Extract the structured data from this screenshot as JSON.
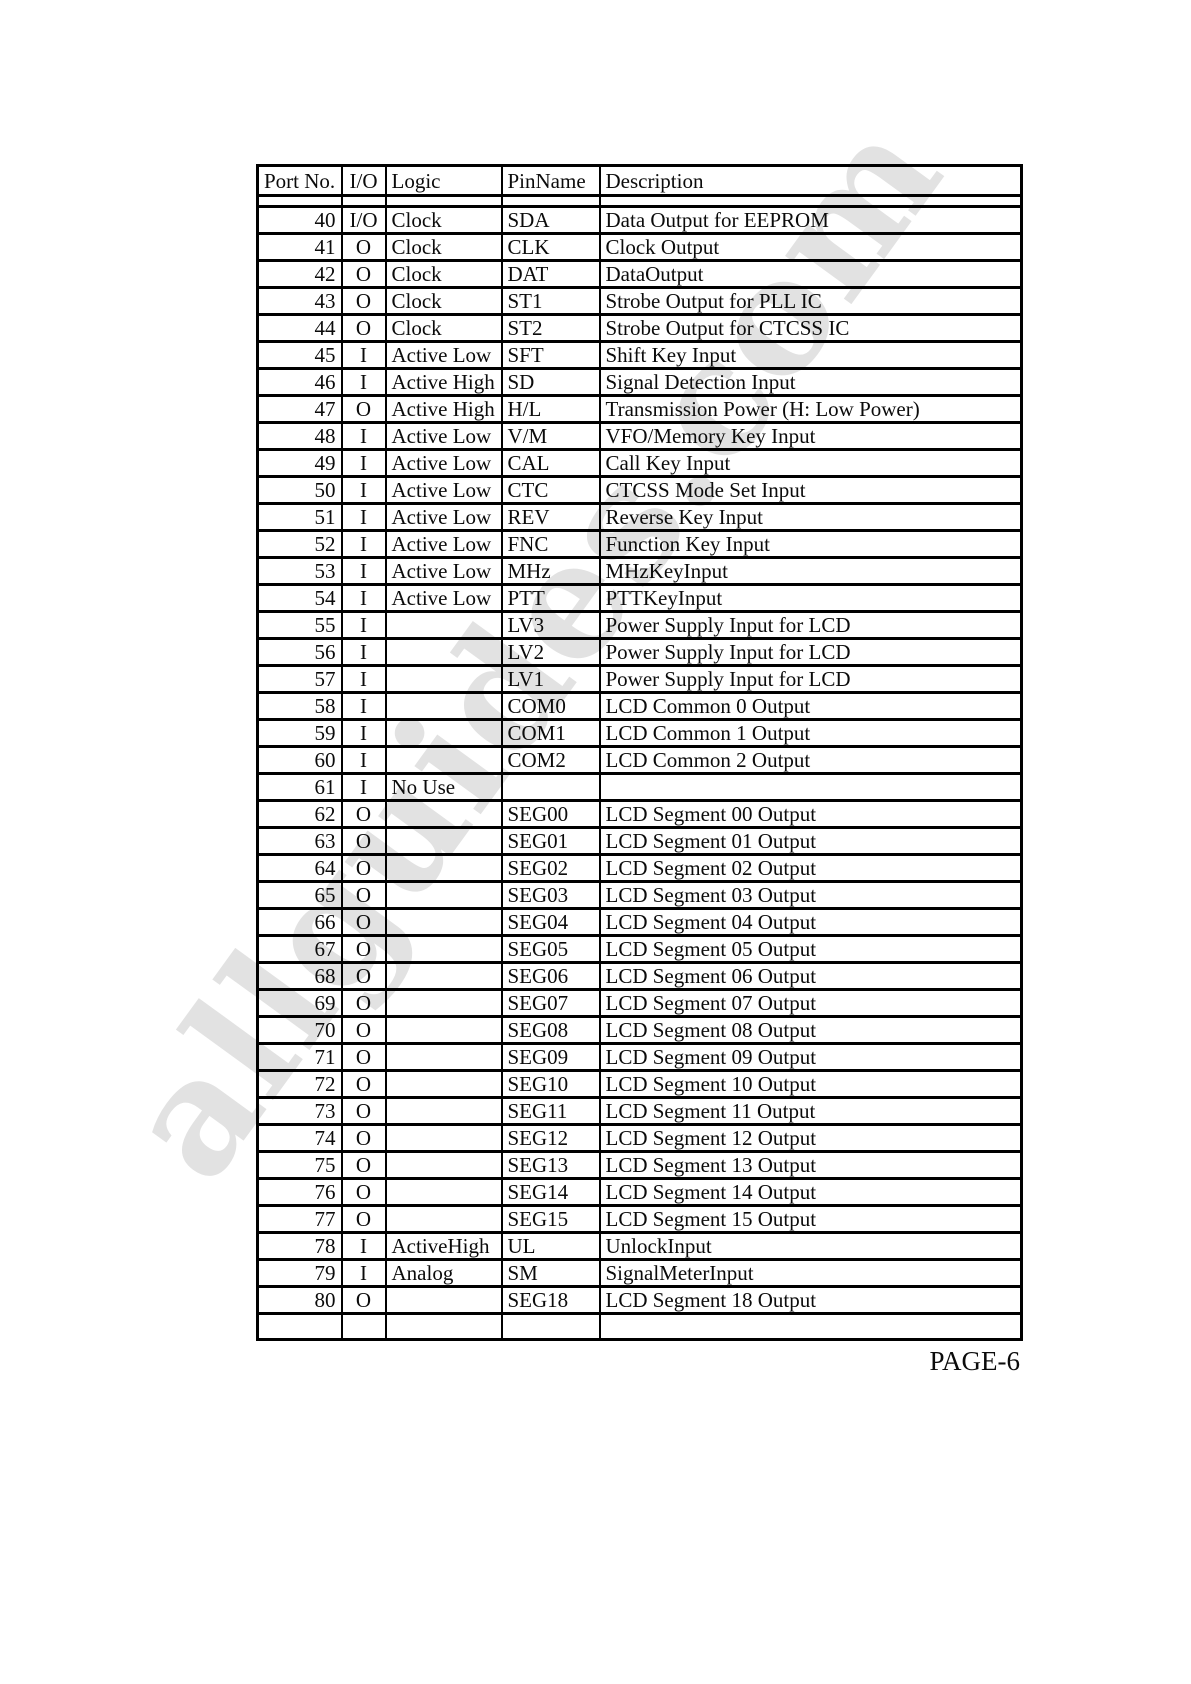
{
  "page": {
    "number_label": "PAGE-6"
  },
  "watermark": {
    "text": "allguides.com"
  },
  "colors": {
    "page_bg": "#ffffff",
    "border": "#000000",
    "watermark": "#e2e2e2"
  },
  "table": {
    "headers": [
      "Port No.",
      "I/O",
      "Logic",
      "PinName",
      "Description"
    ],
    "rows": [
      {
        "port": "40",
        "io": "I/O",
        "logic": "Clock",
        "pin": "SDA",
        "desc": "Data Output for EEPROM"
      },
      {
        "port": "41",
        "io": "O",
        "logic": "Clock",
        "pin": "CLK",
        "desc": "Clock Output"
      },
      {
        "port": "42",
        "io": "O",
        "logic": "Clock",
        "pin": "DAT",
        "desc": "DataOutput"
      },
      {
        "port": "43",
        "io": "O",
        "logic": "Clock",
        "pin": "ST1",
        "desc": "Strobe Output for PLL IC"
      },
      {
        "port": "44",
        "io": "O",
        "logic": "Clock",
        "pin": "ST2",
        "desc": "Strobe Output for CTCSS IC"
      },
      {
        "port": "45",
        "io": "I",
        "logic": "Active Low",
        "pin": "SFT",
        "desc": "Shift Key Input"
      },
      {
        "port": "46",
        "io": "I",
        "logic": "Active High",
        "pin": "SD",
        "desc": "Signal Detection Input"
      },
      {
        "port": "47",
        "io": "O",
        "logic": "Active High",
        "pin": "H/L",
        "desc": "Transmission Power (H: Low Power)"
      },
      {
        "port": "48",
        "io": "I",
        "logic": "Active Low",
        "pin": "V/M",
        "desc": "VFO/Memory Key Input"
      },
      {
        "port": "49",
        "io": "I",
        "logic": "Active Low",
        "pin": "CAL",
        "desc": "Call Key Input"
      },
      {
        "port": "50",
        "io": "I",
        "logic": "Active Low",
        "pin": "CTC",
        "desc": "CTCSS Mode Set Input"
      },
      {
        "port": "51",
        "io": "I",
        "logic": "Active Low",
        "pin": "REV",
        "desc": "Reverse Key Input"
      },
      {
        "port": "52",
        "io": "I",
        "logic": "Active Low",
        "pin": "FNC",
        "desc": "Function Key Input"
      },
      {
        "port": "53",
        "io": "I",
        "logic": "Active Low",
        "pin": "MHz",
        "desc": "MHzKeyInput"
      },
      {
        "port": "54",
        "io": "I",
        "logic": "Active Low",
        "pin": "PTT",
        "desc": "PTTKeyInput"
      },
      {
        "port": "55",
        "io": "I",
        "logic": "",
        "pin": "LV3",
        "desc": "Power Supply Input for LCD"
      },
      {
        "port": "56",
        "io": "I",
        "logic": "",
        "pin": "LV2",
        "desc": "Power Supply Input for LCD"
      },
      {
        "port": "57",
        "io": "I",
        "logic": "",
        "pin": "LV1",
        "desc": "Power Supply Input for LCD"
      },
      {
        "port": "58",
        "io": "I",
        "logic": "",
        "pin": "COM0",
        "desc": "LCD Common 0 Output"
      },
      {
        "port": "59",
        "io": "I",
        "logic": "",
        "pin": "COM1",
        "desc": "LCD Common 1 Output"
      },
      {
        "port": "60",
        "io": "I",
        "logic": "",
        "pin": "COM2",
        "desc": "LCD Common 2 Output"
      },
      {
        "port": "61",
        "io": "I",
        "logic": "No Use",
        "pin": "",
        "desc": ""
      },
      {
        "port": "62",
        "io": "O",
        "logic": "",
        "pin": "SEG00",
        "desc": "LCD Segment 00 Output"
      },
      {
        "port": "63",
        "io": "O",
        "logic": "",
        "pin": "SEG01",
        "desc": "LCD Segment 01 Output"
      },
      {
        "port": "64",
        "io": "O",
        "logic": "",
        "pin": "SEG02",
        "desc": "LCD Segment 02 Output"
      },
      {
        "port": "65",
        "io": "O",
        "logic": "",
        "pin": "SEG03",
        "desc": "LCD Segment 03 Output"
      },
      {
        "port": "66",
        "io": "O",
        "logic": "",
        "pin": "SEG04",
        "desc": "LCD Segment 04 Output"
      },
      {
        "port": "67",
        "io": "O",
        "logic": "",
        "pin": "SEG05",
        "desc": "LCD Segment 05 Output"
      },
      {
        "port": "68",
        "io": "O",
        "logic": "",
        "pin": "SEG06",
        "desc": "LCD Segment 06 Output"
      },
      {
        "port": "69",
        "io": "O",
        "logic": "",
        "pin": "SEG07",
        "desc": "LCD Segment 07 Output"
      },
      {
        "port": "70",
        "io": "O",
        "logic": "",
        "pin": "SEG08",
        "desc": "LCD Segment 08 Output"
      },
      {
        "port": "71",
        "io": "O",
        "logic": "",
        "pin": "SEG09",
        "desc": "LCD Segment 09 Output"
      },
      {
        "port": "72",
        "io": "O",
        "logic": "",
        "pin": "SEG10",
        "desc": "LCD Segment 10 Output"
      },
      {
        "port": "73",
        "io": "O",
        "logic": "",
        "pin": "SEG11",
        "desc": "LCD Segment 11 Output"
      },
      {
        "port": "74",
        "io": "O",
        "logic": "",
        "pin": "SEG12",
        "desc": "LCD Segment 12 Output"
      },
      {
        "port": "75",
        "io": "O",
        "logic": "",
        "pin": "SEG13",
        "desc": "LCD Segment 13 Output"
      },
      {
        "port": "76",
        "io": "O",
        "logic": "",
        "pin": "SEG14",
        "desc": "LCD Segment 14 Output"
      },
      {
        "port": "77",
        "io": "O",
        "logic": "",
        "pin": "SEG15",
        "desc": "LCD Segment 15 Output"
      },
      {
        "port": "78",
        "io": "I",
        "logic": "ActiveHigh",
        "pin": "UL",
        "desc": "UnlockInput"
      },
      {
        "port": "79",
        "io": "I",
        "logic": "Analog",
        "pin": "SM",
        "desc": "SignalMeterInput"
      },
      {
        "port": "80",
        "io": "O",
        "logic": "",
        "pin": "SEG18",
        "desc": "LCD Segment 18 Output"
      }
    ],
    "trailing_empty_row": true
  }
}
